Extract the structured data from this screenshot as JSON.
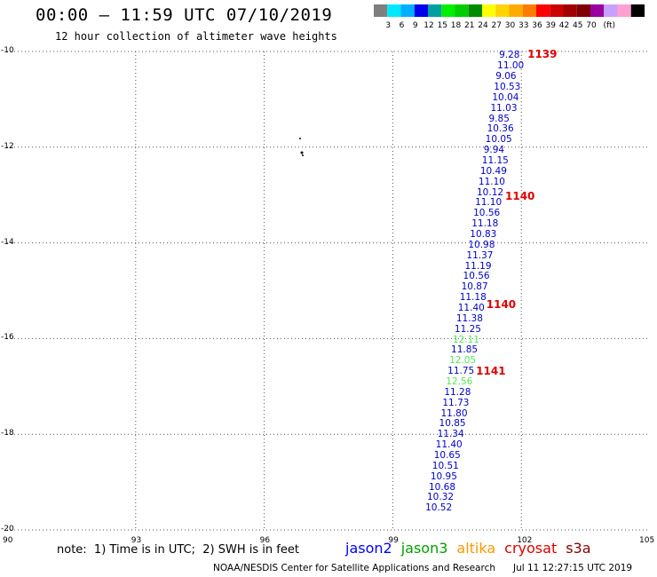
{
  "header": {
    "title": "00:00 – 11:59 UTC 07/10/2019",
    "subtitle": "12 hour collection of altimeter wave heights"
  },
  "colorbar": {
    "colors": [
      "#7f7f7f",
      "#00e8ff",
      "#00b0ff",
      "#0000ee",
      "#00a0a0",
      "#00ee00",
      "#00cc00",
      "#008a00",
      "#ffff00",
      "#ffd400",
      "#ffaa00",
      "#ff7a00",
      "#ff0000",
      "#cc0000",
      "#a00000",
      "#7f0000",
      "#9a00a0",
      "#c8a0ff",
      "#ffa0d0",
      "#000000"
    ],
    "ticks": [
      "3",
      "6",
      "9",
      "12",
      "15",
      "18",
      "21",
      "24",
      "27",
      "30",
      "33",
      "36",
      "39",
      "42",
      "45",
      "70",
      "(ft)"
    ]
  },
  "axes": {
    "xlim": [
      90,
      105
    ],
    "ylim": [
      -20,
      -10
    ],
    "x_ticks": [
      "90",
      "93",
      "96",
      "99",
      "102",
      "105"
    ],
    "y_ticks": [
      "-10",
      "-12",
      "-14",
      "-16",
      "-18",
      "-20"
    ]
  },
  "passes": [
    {
      "label": "1139",
      "lat": -10.08
    },
    {
      "label": "1140",
      "lat": -13.05
    },
    {
      "label": "1140",
      "lat": -15.3
    },
    {
      "label": "1141",
      "lat": -16.7
    }
  ],
  "chart_data": {
    "type": "scatter",
    "xlabel": "",
    "ylabel": "",
    "xlim": [
      90,
      105
    ],
    "ylim": [
      -20,
      -10
    ],
    "grid": true,
    "points": [
      {
        "lat": -10.1,
        "lon": 101.77,
        "value": "9.28",
        "sat": "jason2"
      },
      {
        "lat": -10.32,
        "lon": 101.73,
        "value": "11.00",
        "sat": "jason2"
      },
      {
        "lat": -10.54,
        "lon": 101.69,
        "value": "9.06",
        "sat": "jason2"
      },
      {
        "lat": -10.76,
        "lon": 101.65,
        "value": "10.53",
        "sat": "jason2"
      },
      {
        "lat": -10.98,
        "lon": 101.61,
        "value": "10.04",
        "sat": "jason2"
      },
      {
        "lat": -11.2,
        "lon": 101.57,
        "value": "11.03",
        "sat": "jason2"
      },
      {
        "lat": -11.42,
        "lon": 101.53,
        "value": "9.85",
        "sat": "jason2"
      },
      {
        "lat": -11.64,
        "lon": 101.49,
        "value": "10.36",
        "sat": "jason2"
      },
      {
        "lat": -11.86,
        "lon": 101.45,
        "value": "10.05",
        "sat": "jason2"
      },
      {
        "lat": -12.08,
        "lon": 101.41,
        "value": "9.94",
        "sat": "jason2"
      },
      {
        "lat": -12.3,
        "lon": 101.37,
        "value": "11.15",
        "sat": "jason2"
      },
      {
        "lat": -12.52,
        "lon": 101.33,
        "value": "10.49",
        "sat": "jason2"
      },
      {
        "lat": -12.74,
        "lon": 101.29,
        "value": "11.10",
        "sat": "jason2"
      },
      {
        "lat": -12.96,
        "lon": 101.25,
        "value": "10.12",
        "sat": "jason2"
      },
      {
        "lat": -13.18,
        "lon": 101.21,
        "value": "11.10",
        "sat": "jason2"
      },
      {
        "lat": -13.4,
        "lon": 101.17,
        "value": "10.56",
        "sat": "jason2"
      },
      {
        "lat": -13.62,
        "lon": 101.13,
        "value": "11.18",
        "sat": "jason2"
      },
      {
        "lat": -13.84,
        "lon": 101.09,
        "value": "10.83",
        "sat": "jason2"
      },
      {
        "lat": -14.06,
        "lon": 101.05,
        "value": "10.98",
        "sat": "jason2"
      },
      {
        "lat": -14.28,
        "lon": 101.01,
        "value": "11.37",
        "sat": "jason2"
      },
      {
        "lat": -14.5,
        "lon": 100.97,
        "value": "11.19",
        "sat": "jason2"
      },
      {
        "lat": -14.72,
        "lon": 100.93,
        "value": "10.56",
        "sat": "jason2"
      },
      {
        "lat": -14.94,
        "lon": 100.89,
        "value": "10.87",
        "sat": "jason2"
      },
      {
        "lat": -15.16,
        "lon": 100.85,
        "value": "11.18",
        "sat": "jason2"
      },
      {
        "lat": -15.38,
        "lon": 100.81,
        "value": "11.40",
        "sat": "jason2"
      },
      {
        "lat": -15.6,
        "lon": 100.77,
        "value": "11.38",
        "sat": "jason2"
      },
      {
        "lat": -15.82,
        "lon": 100.73,
        "value": "11.25",
        "sat": "jason2"
      },
      {
        "lat": -16.04,
        "lon": 100.69,
        "value": "12.11",
        "sat": "jason3"
      },
      {
        "lat": -16.26,
        "lon": 100.65,
        "value": "11.85",
        "sat": "jason2"
      },
      {
        "lat": -16.48,
        "lon": 100.61,
        "value": "12.05",
        "sat": "jason3"
      },
      {
        "lat": -16.7,
        "lon": 100.57,
        "value": "11.75",
        "sat": "jason2"
      },
      {
        "lat": -16.92,
        "lon": 100.53,
        "value": "12.56",
        "sat": "jason3"
      },
      {
        "lat": -17.14,
        "lon": 100.49,
        "value": "11.28",
        "sat": "jason2"
      },
      {
        "lat": -17.36,
        "lon": 100.45,
        "value": "11.73",
        "sat": "jason2"
      },
      {
        "lat": -17.58,
        "lon": 100.41,
        "value": "11.80",
        "sat": "jason2"
      },
      {
        "lat": -17.8,
        "lon": 100.37,
        "value": "10.85",
        "sat": "jason2"
      },
      {
        "lat": -18.02,
        "lon": 100.33,
        "value": "11.34",
        "sat": "jason2"
      },
      {
        "lat": -18.24,
        "lon": 100.29,
        "value": "11.40",
        "sat": "jason2"
      },
      {
        "lat": -18.46,
        "lon": 100.25,
        "value": "10.65",
        "sat": "jason2"
      },
      {
        "lat": -18.68,
        "lon": 100.21,
        "value": "10.51",
        "sat": "jason2"
      },
      {
        "lat": -18.9,
        "lon": 100.17,
        "value": "10.95",
        "sat": "jason2"
      },
      {
        "lat": -19.12,
        "lon": 100.13,
        "value": "10.68",
        "sat": "jason2"
      },
      {
        "lat": -19.34,
        "lon": 100.09,
        "value": "10.32",
        "sat": "jason2"
      },
      {
        "lat": -19.56,
        "lon": 100.05,
        "value": "10.52",
        "sat": "jason2"
      }
    ]
  },
  "sat_colors": {
    "jason2": "#0000c8",
    "jason3": "#58e858"
  },
  "footer": {
    "note": "note:  1) Time is in UTC;  2) SWH is in feet",
    "legend": [
      {
        "name": "jason2",
        "color": "#0000ff"
      },
      {
        "name": "jason3",
        "color": "#00a000"
      },
      {
        "name": "altika",
        "color": "#ff9900"
      },
      {
        "name": "cryosat",
        "color": "#dd0000"
      },
      {
        "name": "s3a",
        "color": "#880000"
      }
    ],
    "credit": "NOAA/NESDIS Center for Satellite Applications and Research",
    "timestamp": "Jul 11 12:27:15 UTC 2019"
  }
}
